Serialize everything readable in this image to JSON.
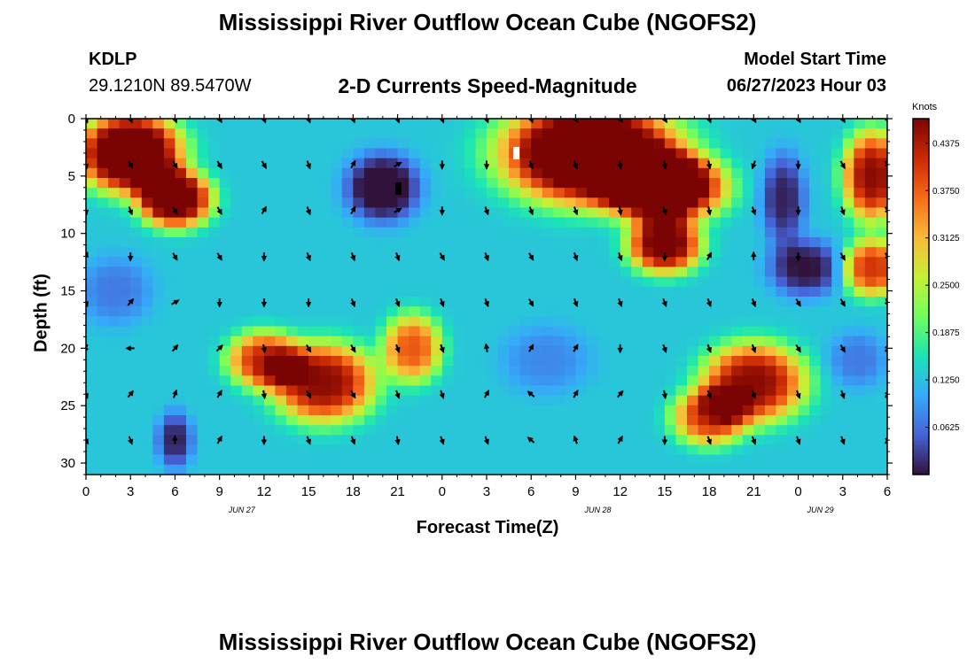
{
  "figure": {
    "title": "Mississippi River Outflow Ocean Cube (NGOFS2)",
    "title_repeat": "Mississippi River Outflow Ocean Cube (NGOFS2)",
    "station_id": "KDLP",
    "station_coords": "29.1210N  89.5470W",
    "subtitle": "2-D Currents Speed-Magnitude",
    "model_start_label": "Model Start Time",
    "model_start_value": "06/27/2023 Hour 03"
  },
  "chart_data": {
    "type": "heatmap",
    "xlabel": "Forecast Time(Z)",
    "ylabel": "Depth (ft)",
    "x_tick_labels": [
      "0",
      "3",
      "6",
      "9",
      "12",
      "15",
      "18",
      "21",
      "0",
      "3",
      "6",
      "9",
      "12",
      "15",
      "18",
      "21",
      "0",
      "3",
      "6"
    ],
    "date_labels": [
      {
        "label": "JUN 27",
        "hour": 10.5
      },
      {
        "label": "JUN 28",
        "hour": 34.5
      },
      {
        "label": "JUN 29",
        "hour": 49.5
      }
    ],
    "xlim": [
      0,
      54
    ],
    "y_ticks": [
      0,
      5,
      10,
      15,
      20,
      25,
      30
    ],
    "ylim": [
      0,
      31
    ],
    "y_inverted": true,
    "colorbar": {
      "unit": "Knots",
      "ticks": [
        "0.4375",
        "0.3750",
        "0.3125",
        "0.2500",
        "0.1875",
        "0.1250",
        "0.0625"
      ],
      "range": [
        0,
        0.47
      ],
      "colormap": [
        "#30123b",
        "#4662d7",
        "#36aaf9",
        "#1ae4b6",
        "#72fe5e",
        "#c7ef34",
        "#faba39",
        "#f66b19",
        "#ca2a04",
        "#7a0403"
      ]
    },
    "speed_features": [
      {
        "hour": 3,
        "depth": 3,
        "value": 0.44,
        "spread_h": 3.5,
        "spread_d": 3.5
      },
      {
        "hour": 6,
        "depth": 7,
        "value": 0.4,
        "spread_h": 2.5,
        "spread_d": 2.5
      },
      {
        "hour": 34,
        "depth": 3,
        "value": 0.46,
        "spread_h": 6,
        "spread_d": 4.5
      },
      {
        "hour": 39,
        "depth": 6,
        "value": 0.44,
        "spread_h": 4,
        "spread_d": 3
      },
      {
        "hour": 39,
        "depth": 11,
        "value": 0.36,
        "spread_h": 2.5,
        "spread_d": 2.5
      },
      {
        "hour": 53,
        "depth": 5,
        "value": 0.33,
        "spread_h": 2,
        "spread_d": 4
      },
      {
        "hour": 53,
        "depth": 13,
        "value": 0.28,
        "spread_h": 2,
        "spread_d": 2.5
      },
      {
        "hour": 16,
        "depth": 23,
        "value": 0.33,
        "spread_h": 3.5,
        "spread_d": 3.5
      },
      {
        "hour": 12,
        "depth": 21,
        "value": 0.28,
        "spread_h": 2.5,
        "spread_d": 2.5
      },
      {
        "hour": 45,
        "depth": 23,
        "value": 0.33,
        "spread_h": 3.5,
        "spread_d": 3.5
      },
      {
        "hour": 42,
        "depth": 26,
        "value": 0.27,
        "spread_h": 2.5,
        "spread_d": 2.5
      },
      {
        "hour": 22,
        "depth": 20,
        "value": 0.25,
        "spread_h": 2,
        "spread_d": 3
      },
      {
        "hour": 20,
        "depth": 6,
        "value": -0.16,
        "spread_h": 2.5,
        "spread_d": 3
      },
      {
        "hour": 47,
        "depth": 7,
        "value": -0.12,
        "spread_h": 1.5,
        "spread_d": 4
      },
      {
        "hour": 48.5,
        "depth": 13,
        "value": -0.13,
        "spread_h": 2.5,
        "spread_d": 2.5
      },
      {
        "hour": 6,
        "depth": 28,
        "value": -0.12,
        "spread_h": 1.2,
        "spread_d": 2.5
      },
      {
        "hour": 52,
        "depth": 21,
        "value": -0.06,
        "spread_h": 2,
        "spread_d": 2.5
      },
      {
        "hour": 2,
        "depth": 15,
        "value": -0.06,
        "spread_h": 2.5,
        "spread_d": 3
      },
      {
        "hour": 31,
        "depth": 21,
        "value": -0.05,
        "spread_h": 3,
        "spread_d": 3
      }
    ],
    "background_speed": 0.13,
    "vector_hours": [
      0,
      3,
      6,
      9,
      12,
      15,
      18,
      21,
      24,
      27,
      30,
      33,
      36,
      39,
      42,
      45,
      48,
      51,
      54
    ],
    "vector_depths": [
      0,
      4,
      8,
      12,
      16,
      20,
      24,
      28
    ],
    "vector_directions_deg": [
      [
        160,
        160,
        160,
        150,
        160,
        160,
        160,
        160,
        160,
        160,
        160,
        150,
        150,
        150,
        160,
        150,
        150,
        150,
        150
      ],
      [
        170,
        150,
        150,
        150,
        150,
        160,
        30,
        60,
        180,
        180,
        160,
        160,
        170,
        170,
        170,
        200,
        180,
        150,
        150
      ],
      [
        170,
        160,
        150,
        150,
        30,
        160,
        30,
        60,
        180,
        160,
        160,
        160,
        170,
        160,
        170,
        160,
        180,
        160,
        150
      ],
      [
        20,
        180,
        150,
        150,
        180,
        160,
        160,
        160,
        150,
        160,
        150,
        160,
        160,
        180,
        30,
        0,
        180,
        150,
        150
      ],
      [
        160,
        40,
        60,
        180,
        180,
        180,
        160,
        160,
        160,
        160,
        150,
        160,
        160,
        160,
        160,
        160,
        150,
        150,
        160
      ],
      [
        200,
        270,
        40,
        45,
        170,
        150,
        150,
        160,
        160,
        350,
        30,
        30,
        180,
        160,
        160,
        160,
        150,
        150,
        30
      ],
      [
        160,
        40,
        20,
        30,
        170,
        150,
        150,
        160,
        160,
        30,
        310,
        30,
        40,
        170,
        160,
        160,
        160,
        160,
        30
      ],
      [
        150,
        160,
        0,
        30,
        180,
        160,
        160,
        170,
        160,
        160,
        310,
        340,
        30,
        180,
        160,
        160,
        160,
        160,
        30
      ]
    ]
  }
}
